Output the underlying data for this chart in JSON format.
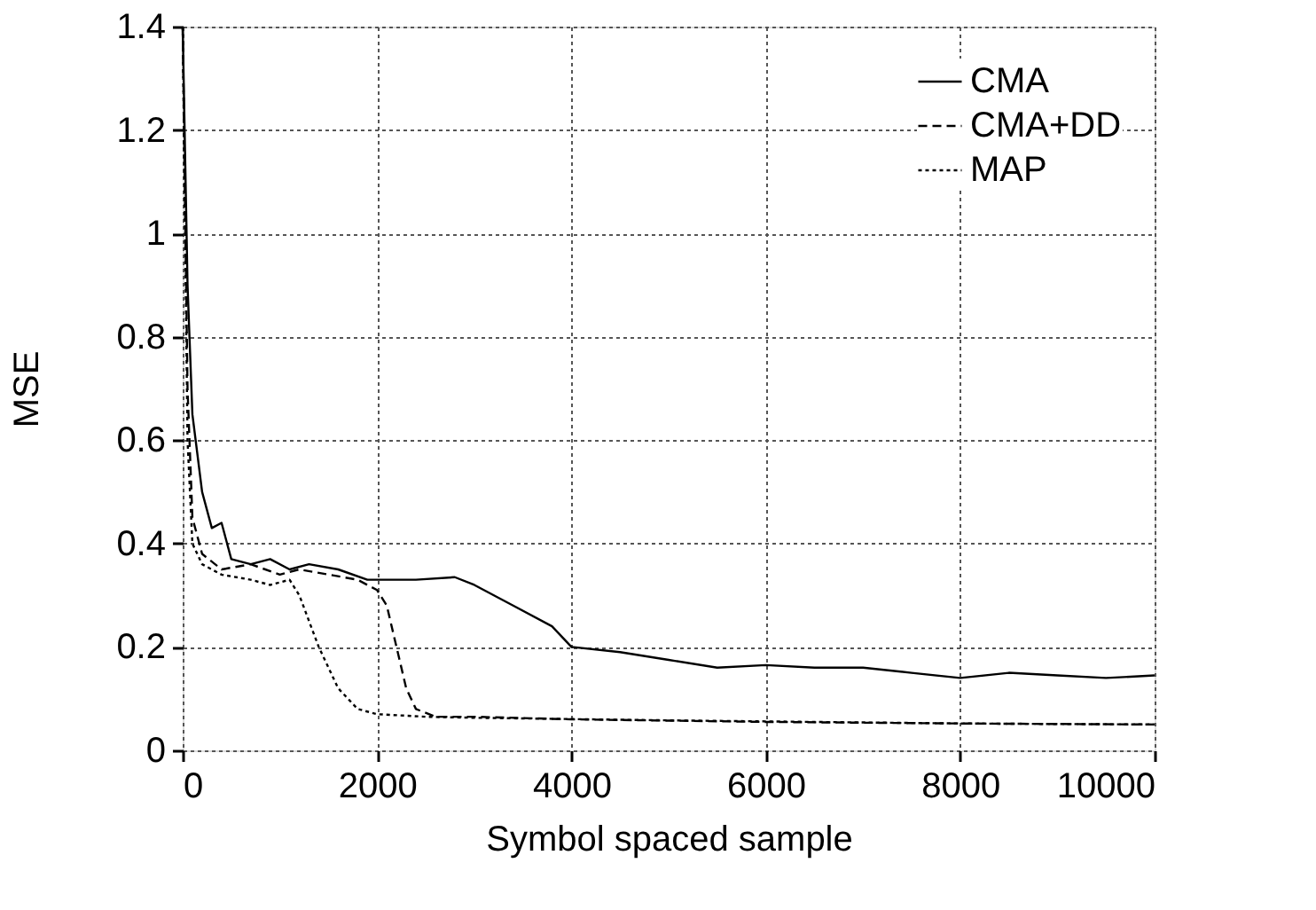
{
  "chart_data": {
    "type": "line",
    "xlabel": "Symbol spaced sample",
    "ylabel": "MSE",
    "xlim": [
      0,
      10000
    ],
    "ylim": [
      0,
      1.4
    ],
    "xticks": [
      0,
      2000,
      4000,
      6000,
      8000,
      10000
    ],
    "yticks": [
      0,
      0.2,
      0.4,
      0.6,
      0.8,
      1,
      1.2,
      1.4
    ],
    "grid": true,
    "legend": "top right",
    "marker": "none",
    "series": [
      {
        "name": "CMA",
        "color": "#000000",
        "line_style": "solid",
        "x": [
          0,
          50,
          100,
          200,
          300,
          400,
          500,
          700,
          900,
          1100,
          1300,
          1600,
          1900,
          2100,
          2400,
          2800,
          3000,
          3400,
          3800,
          4000,
          4500,
          5000,
          5500,
          6000,
          6500,
          7000,
          7500,
          8000,
          8500,
          9000,
          9500,
          10000
        ],
        "values": [
          1.4,
          0.9,
          0.65,
          0.5,
          0.43,
          0.44,
          0.37,
          0.36,
          0.37,
          0.35,
          0.36,
          0.35,
          0.33,
          0.33,
          0.33,
          0.335,
          0.32,
          0.28,
          0.24,
          0.2,
          0.19,
          0.175,
          0.16,
          0.165,
          0.16,
          0.16,
          0.15,
          0.14,
          0.15,
          0.145,
          0.14,
          0.145
        ]
      },
      {
        "name": "CMA+DD",
        "color": "#000000",
        "line_style": "dashed",
        "x": [
          0,
          50,
          100,
          200,
          400,
          700,
          1000,
          1200,
          1500,
          1800,
          2000,
          2100,
          2200,
          2300,
          2400,
          2600,
          3000,
          4000,
          6000,
          8000,
          10000
        ],
        "values": [
          1.4,
          0.7,
          0.45,
          0.38,
          0.35,
          0.36,
          0.34,
          0.35,
          0.34,
          0.33,
          0.31,
          0.28,
          0.2,
          0.12,
          0.08,
          0.065,
          0.065,
          0.06,
          0.055,
          0.052,
          0.05
        ]
      },
      {
        "name": "MAP",
        "color": "#000000",
        "line_style": "dotted",
        "x": [
          0,
          50,
          100,
          200,
          400,
          700,
          900,
          1100,
          1200,
          1400,
          1600,
          1800,
          2000,
          2500,
          3000,
          5000,
          8000,
          10000
        ],
        "values": [
          1.4,
          0.6,
          0.4,
          0.36,
          0.34,
          0.33,
          0.32,
          0.33,
          0.3,
          0.2,
          0.12,
          0.08,
          0.07,
          0.065,
          0.063,
          0.058,
          0.052,
          0.05
        ]
      }
    ]
  }
}
